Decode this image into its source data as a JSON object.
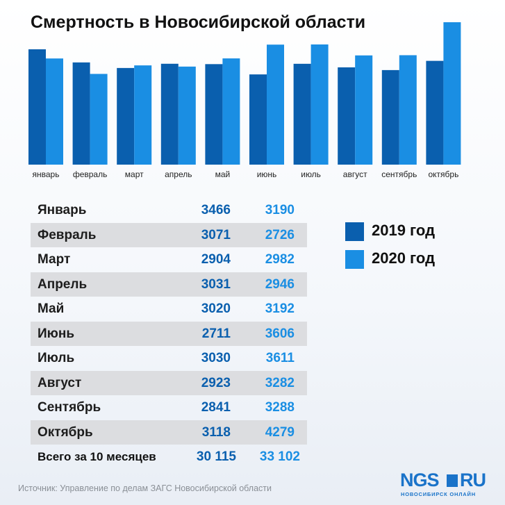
{
  "title": "Смертность в Новосибирской области",
  "colors": {
    "y2019": "#0a5fae",
    "y2020": "#1a8ee3"
  },
  "chart_data": {
    "type": "bar",
    "title": "Смертность в Новосибирской области",
    "categories": [
      "январь",
      "февраль",
      "март",
      "апрель",
      "май",
      "июнь",
      "июль",
      "август",
      "сентябрь",
      "октябрь"
    ],
    "series": [
      {
        "name": "2019 год",
        "values": [
          3466,
          3071,
          2904,
          3031,
          3020,
          2711,
          3030,
          2923,
          2841,
          3118
        ]
      },
      {
        "name": "2020 год",
        "values": [
          3190,
          2726,
          2982,
          2946,
          3192,
          3606,
          3611,
          3282,
          3288,
          4279
        ]
      }
    ],
    "xlabel": "",
    "ylabel": "",
    "ylim": [
      0,
      4400
    ],
    "grid": false,
    "legend": "right"
  },
  "table": {
    "rows": [
      {
        "month": "Январь",
        "v2019": "3466",
        "v2020": "3190"
      },
      {
        "month": "Февраль",
        "v2019": "3071",
        "v2020": "2726"
      },
      {
        "month": "Март",
        "v2019": "2904",
        "v2020": "2982"
      },
      {
        "month": "Апрель",
        "v2019": "3031",
        "v2020": "2946"
      },
      {
        "month": "Май",
        "v2019": "3020",
        "v2020": "3192"
      },
      {
        "month": "Июнь",
        "v2019": "2711",
        "v2020": "3606"
      },
      {
        "month": "Июль",
        "v2019": "3030",
        "v2020": "3611"
      },
      {
        "month": "Август",
        "v2019": "2923",
        "v2020": "3282"
      },
      {
        "month": "Сентябрь",
        "v2019": "2841",
        "v2020": "3288"
      },
      {
        "month": "Октябрь",
        "v2019": "3118",
        "v2020": "4279"
      }
    ],
    "total": {
      "label": "Всего за 10 месяцев",
      "v2019": "30 115",
      "v2020": "33 102"
    }
  },
  "legend": {
    "items": [
      "2019 год",
      "2020 год"
    ]
  },
  "source": "Источник: Управление по делам ЗАГС Новосибирской области",
  "logo": {
    "brand": "NGS",
    "suffix": "RU",
    "tagline": "НОВОСИБИРСК ОНЛАЙН"
  }
}
